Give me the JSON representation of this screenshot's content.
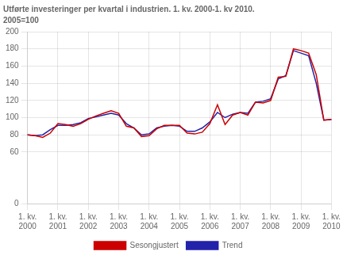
{
  "chart_data": {
    "type": "line",
    "title": "Utførte investeringer per kvartal i industrien. 1. kv. 2000-1. kv 2010.",
    "subtitle": "2005=100",
    "categories": [
      "1. kv.\n2000",
      null,
      null,
      null,
      "1. kv.\n2001",
      null,
      null,
      null,
      "1. kv.\n2002",
      null,
      null,
      null,
      "1. kv.\n2003",
      null,
      null,
      null,
      "1. kv.\n2004",
      null,
      null,
      null,
      "1. kv.\n2005",
      null,
      null,
      null,
      "1. kv.\n2006",
      null,
      null,
      null,
      "1. kv.\n2007",
      null,
      null,
      null,
      "1. kv.\n2008",
      null,
      null,
      null,
      "1. kv.\n2009",
      null,
      null,
      null,
      "1. kv.\n2010"
    ],
    "series": [
      {
        "name": "Sesongjustert",
        "color": "#cc0000",
        "values": [
          80,
          79,
          77,
          82,
          93,
          92,
          90,
          93,
          98,
          102,
          105,
          108,
          105,
          90,
          88,
          78,
          79,
          87,
          91,
          91,
          91,
          82,
          81,
          83,
          93,
          115,
          92,
          103,
          106,
          103,
          118,
          117,
          120,
          147,
          148,
          180,
          178,
          175,
          150,
          97,
          98
        ]
      },
      {
        "name": "Trend",
        "color": "#2222aa",
        "values": [
          80,
          79,
          80,
          86,
          91,
          91,
          92,
          94,
          99,
          101,
          103,
          105,
          103,
          93,
          88,
          80,
          81,
          88,
          90,
          91,
          90,
          84,
          84,
          88,
          95,
          106,
          100,
          104,
          106,
          105,
          118,
          119,
          122,
          145,
          149,
          178,
          175,
          172,
          140,
          97,
          98
        ]
      }
    ],
    "ylim": [
      0,
      200
    ],
    "yticks": [
      0,
      60,
      80,
      100,
      120,
      140,
      160,
      180,
      200
    ],
    "grid": true,
    "legend": "bottom"
  }
}
